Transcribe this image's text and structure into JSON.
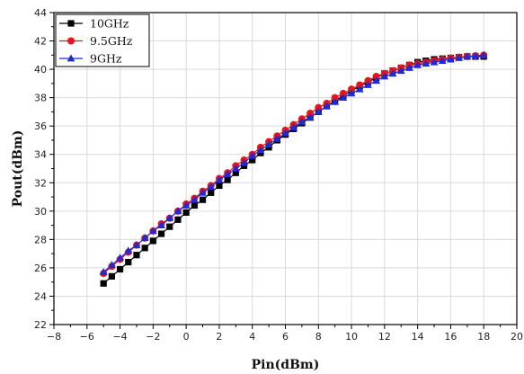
{
  "chart_data": {
    "type": "line",
    "title": "",
    "xlabel": "Pin(dBm)",
    "ylabel": "Pout(dBm)",
    "xlim": [
      -8,
      20
    ],
    "ylim": [
      22,
      44
    ],
    "xticks": [
      -8,
      -6,
      -4,
      -2,
      0,
      2,
      4,
      6,
      8,
      10,
      12,
      14,
      16,
      18,
      20
    ],
    "yticks": [
      22,
      24,
      26,
      28,
      30,
      32,
      34,
      36,
      38,
      40,
      42,
      44
    ],
    "grid": true,
    "legend_position": "top-left",
    "x": [
      -5,
      -4.5,
      -4,
      -3.5,
      -3,
      -2.5,
      -2,
      -1.5,
      -1,
      -0.5,
      0,
      0.5,
      1,
      1.5,
      2,
      2.5,
      3,
      3.5,
      4,
      4.5,
      5,
      5.5,
      6,
      6.5,
      7,
      7.5,
      8,
      8.5,
      9,
      9.5,
      10,
      10.5,
      11,
      11.5,
      12,
      12.5,
      13,
      13.5,
      14,
      14.5,
      15,
      15.5,
      16,
      16.5,
      17,
      17.5,
      18
    ],
    "series": [
      {
        "name": "10GHz",
        "color": "#000000",
        "marker": "square",
        "values": [
          24.9,
          25.4,
          25.9,
          26.4,
          26.9,
          27.4,
          27.9,
          28.4,
          28.9,
          29.4,
          29.9,
          30.4,
          30.8,
          31.3,
          31.8,
          32.2,
          32.7,
          33.2,
          33.6,
          34.1,
          34.5,
          35.0,
          35.4,
          35.8,
          36.2,
          36.6,
          37.0,
          37.4,
          37.8,
          38.1,
          38.5,
          38.8,
          39.1,
          39.4,
          39.7,
          39.9,
          40.1,
          40.3,
          40.5,
          40.6,
          40.7,
          40.75,
          40.8,
          40.85,
          40.9,
          40.9,
          40.9
        ]
      },
      {
        "name": "9.5GHz",
        "color": "#e8141a",
        "marker": "circle",
        "values": [
          25.6,
          26.1,
          26.6,
          27.1,
          27.6,
          28.1,
          28.6,
          29.1,
          29.5,
          30.0,
          30.5,
          30.9,
          31.4,
          31.8,
          32.3,
          32.7,
          33.2,
          33.6,
          34.0,
          34.5,
          34.9,
          35.3,
          35.7,
          36.1,
          36.5,
          36.9,
          37.3,
          37.6,
          38.0,
          38.3,
          38.6,
          38.9,
          39.2,
          39.5,
          39.7,
          39.9,
          40.1,
          40.3,
          40.4,
          40.5,
          40.6,
          40.7,
          40.8,
          40.85,
          40.9,
          40.95,
          41.0
        ]
      },
      {
        "name": "9GHz",
        "color": "#1f29d6",
        "marker": "triangle",
        "values": [
          25.7,
          26.2,
          26.7,
          27.2,
          27.6,
          28.1,
          28.6,
          29.0,
          29.5,
          30.0,
          30.4,
          30.8,
          31.3,
          31.7,
          32.2,
          32.6,
          33.0,
          33.4,
          33.9,
          34.3,
          34.7,
          35.1,
          35.5,
          35.9,
          36.3,
          36.6,
          37.0,
          37.4,
          37.7,
          38.0,
          38.3,
          38.6,
          38.9,
          39.2,
          39.5,
          39.7,
          39.9,
          40.1,
          40.3,
          40.4,
          40.5,
          40.6,
          40.7,
          40.8,
          40.9,
          40.95,
          41.0
        ]
      }
    ]
  }
}
